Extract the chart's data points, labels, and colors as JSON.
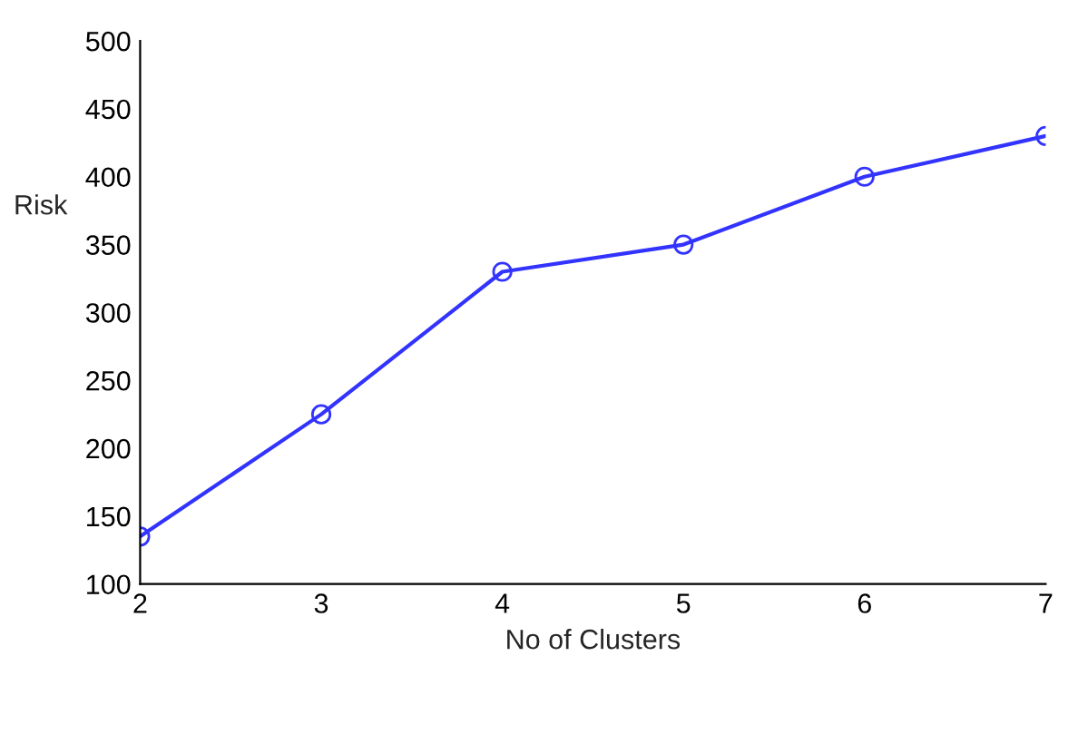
{
  "chart_data": {
    "type": "line",
    "xlabel": "No of Clusters",
    "ylabel": "Risk",
    "x": [
      2,
      3,
      4,
      5,
      6,
      7
    ],
    "series": [
      {
        "color": "#3333ff",
        "values": [
          135,
          225,
          330,
          350,
          400,
          430
        ]
      }
    ],
    "xlim": [
      2,
      7
    ],
    "xticks": [
      2,
      3,
      4,
      5,
      6,
      7
    ],
    "ylim": [
      100,
      500
    ],
    "yticks": [
      100,
      150,
      200,
      250,
      300,
      350,
      400,
      450,
      500
    ],
    "marker": "circle",
    "line_style": "solid",
    "grid": false
  }
}
